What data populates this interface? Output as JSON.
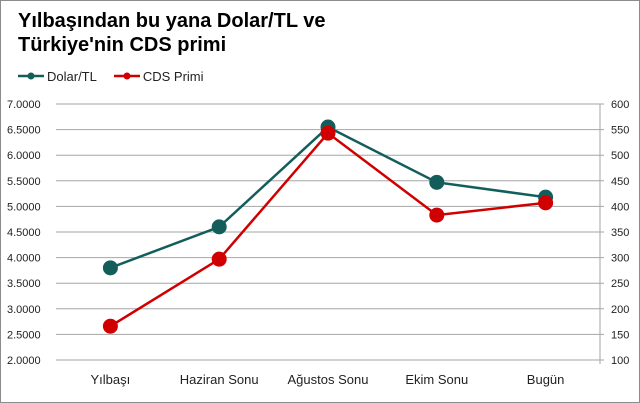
{
  "title_line1": "Yılbaşından bu yana Dolar/TL ve",
  "title_line2": "Türkiye'nin CDS primi",
  "legend": [
    {
      "label": "Dolar/TL",
      "color": "#135e5b"
    },
    {
      "label": "CDS Primi",
      "color": "#d00000"
    }
  ],
  "chart_data": {
    "type": "line",
    "title": "Yılbaşından bu yana Dolar/TL ve Türkiye'nin CDS primi",
    "categories": [
      "Yılbaşı",
      "Haziran Sonu",
      "Ağustos Sonu",
      "Ekim Sonu",
      "Bugün"
    ],
    "series": [
      {
        "name": "Dolar/TL",
        "axis": "left",
        "color": "#135e5b",
        "values": [
          3.8,
          4.6,
          6.55,
          5.47,
          5.18
        ]
      },
      {
        "name": "CDS Primi",
        "axis": "right",
        "color": "#d00000",
        "values": [
          166,
          297,
          543,
          383,
          407
        ]
      }
    ],
    "left_axis": {
      "ylim": [
        2.0,
        7.0
      ],
      "ticks": [
        "2.0000",
        "2.5000",
        "3.0000",
        "3.5000",
        "4.0000",
        "4.5000",
        "5.0000",
        "5.5000",
        "6.0000",
        "6.5000",
        "7.0000"
      ]
    },
    "right_axis": {
      "ylim": [
        100,
        600
      ],
      "ticks": [
        "100",
        "150",
        "200",
        "250",
        "300",
        "350",
        "400",
        "450",
        "500",
        "550",
        "600"
      ]
    },
    "xlabel": "",
    "ylabel": "",
    "grid": true,
    "legend_position": "top-left"
  }
}
